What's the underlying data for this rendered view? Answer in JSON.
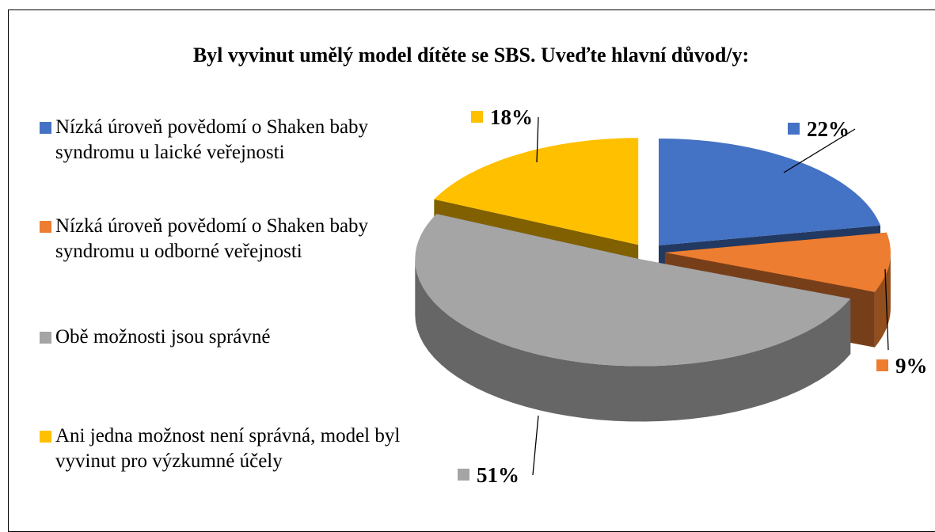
{
  "chart_data": {
    "type": "pie",
    "title": "Byl vyvinut umělý model dítěte se SBS. Uveďte hlavní důvod/y:",
    "categories": [
      "Nízká úroveň povědomí o Shaken baby syndromu u laické veřejnosti",
      "Nízká úroveň povědomí o Shaken baby syndromu u odborné veřejnosti",
      "Obě možnosti jsou správné",
      "Ani jedna možnost není správná, model byl vyvinut pro výzkumné účely"
    ],
    "values": [
      22,
      9,
      51,
      18
    ],
    "value_labels": [
      "22%",
      "9%",
      "51%",
      "18%"
    ],
    "colors": [
      "#4472c4",
      "#ed7d31",
      "#a5a5a5",
      "#ffc000"
    ],
    "legend": "left"
  }
}
